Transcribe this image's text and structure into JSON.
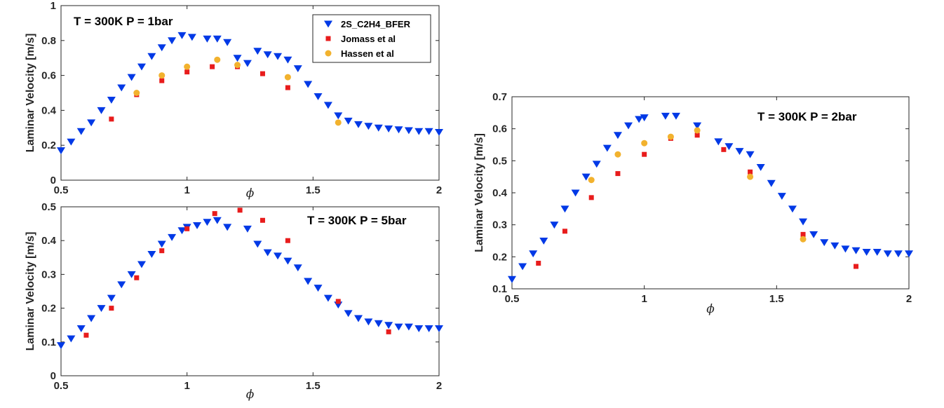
{
  "chart_data": [
    {
      "id": "p1",
      "type": "scatter",
      "annotation": "T = 300K P = 1bar",
      "xlabel": "ϕ",
      "ylabel": "Laminar Velocity [m/s]",
      "xlim": [
        0.5,
        2
      ],
      "ylim": [
        0,
        1
      ],
      "xticks": [
        0.5,
        1,
        1.5,
        2
      ],
      "xtick_labels": [
        "0.5",
        "1",
        "1.5",
        "2"
      ],
      "yticks": [
        0,
        0.2,
        0.4,
        0.6,
        0.8,
        1
      ],
      "ytick_labels": [
        "0",
        "0.2",
        "0.4",
        "0.6",
        "0.8",
        "1"
      ],
      "legend": {
        "placement": "top-right",
        "entries": [
          "2S_C2H4_BFER",
          "Jomass et al",
          "Hassen et al"
        ]
      },
      "series": [
        {
          "name": "2S_C2H4_BFER",
          "marker": "triangle-down",
          "color": "#0039e6",
          "x": [
            0.5,
            0.54,
            0.58,
            0.62,
            0.66,
            0.7,
            0.74,
            0.78,
            0.82,
            0.86,
            0.9,
            0.94,
            0.98,
            1.02,
            1.08,
            1.12,
            1.16,
            1.2,
            1.24,
            1.28,
            1.32,
            1.36,
            1.4,
            1.44,
            1.48,
            1.52,
            1.56,
            1.6,
            1.64,
            1.68,
            1.72,
            1.76,
            1.8,
            1.84,
            1.88,
            1.92,
            1.96,
            2.0
          ],
          "y": [
            0.17,
            0.22,
            0.28,
            0.33,
            0.4,
            0.46,
            0.53,
            0.59,
            0.65,
            0.71,
            0.76,
            0.8,
            0.83,
            0.82,
            0.81,
            0.81,
            0.79,
            0.7,
            0.67,
            0.74,
            0.72,
            0.71,
            0.69,
            0.64,
            0.55,
            0.48,
            0.43,
            0.37,
            0.34,
            0.32,
            0.31,
            0.3,
            0.295,
            0.29,
            0.285,
            0.28,
            0.28,
            0.275
          ]
        },
        {
          "name": "Jomass et al",
          "marker": "square",
          "color": "#e81c1c",
          "x": [
            0.7,
            0.8,
            0.9,
            1.0,
            1.1,
            1.2,
            1.3,
            1.4
          ],
          "y": [
            0.35,
            0.49,
            0.57,
            0.62,
            0.65,
            0.65,
            0.61,
            0.53
          ]
        },
        {
          "name": "Hassen et al",
          "marker": "circle",
          "color": "#f2b22e",
          "x": [
            0.8,
            0.9,
            1.0,
            1.12,
            1.2,
            1.4,
            1.6
          ],
          "y": [
            0.5,
            0.6,
            0.65,
            0.69,
            0.66,
            0.59,
            0.33
          ]
        }
      ]
    },
    {
      "id": "p2",
      "type": "scatter",
      "annotation": "T = 300K P = 5bar",
      "xlabel": "ϕ",
      "ylabel": "Laminar Velocity [m/s]",
      "xlim": [
        0.5,
        2
      ],
      "ylim": [
        0,
        0.5
      ],
      "xticks": [
        0.5,
        1,
        1.5,
        2
      ],
      "xtick_labels": [
        "0.5",
        "1",
        "1.5",
        "2"
      ],
      "yticks": [
        0,
        0.1,
        0.2,
        0.3,
        0.4,
        0.5
      ],
      "ytick_labels": [
        "0",
        "0.1",
        "0.2",
        "0.3",
        "0.4",
        "0.5"
      ],
      "series": [
        {
          "name": "2S_C2H4_BFER",
          "marker": "triangle-down",
          "color": "#0039e6",
          "x": [
            0.5,
            0.54,
            0.58,
            0.62,
            0.66,
            0.7,
            0.74,
            0.78,
            0.82,
            0.86,
            0.9,
            0.94,
            0.98,
            1.0,
            1.04,
            1.08,
            1.12,
            1.16,
            1.24,
            1.28,
            1.32,
            1.36,
            1.4,
            1.44,
            1.48,
            1.52,
            1.56,
            1.6,
            1.64,
            1.68,
            1.72,
            1.76,
            1.8,
            1.84,
            1.88,
            1.92,
            1.96,
            2.0
          ],
          "y": [
            0.09,
            0.11,
            0.14,
            0.17,
            0.2,
            0.23,
            0.27,
            0.3,
            0.33,
            0.36,
            0.39,
            0.41,
            0.43,
            0.44,
            0.445,
            0.455,
            0.46,
            0.44,
            0.435,
            0.39,
            0.365,
            0.355,
            0.34,
            0.32,
            0.28,
            0.26,
            0.23,
            0.21,
            0.185,
            0.17,
            0.16,
            0.155,
            0.15,
            0.145,
            0.145,
            0.14,
            0.14,
            0.14
          ]
        },
        {
          "name": "Jomass et al",
          "marker": "square",
          "color": "#e81c1c",
          "x": [
            0.6,
            0.7,
            0.8,
            0.9,
            1.0,
            1.11,
            1.21,
            1.3,
            1.4,
            1.6,
            1.8
          ],
          "y": [
            0.12,
            0.2,
            0.29,
            0.37,
            0.435,
            0.48,
            0.49,
            0.46,
            0.4,
            0.22,
            0.13
          ]
        }
      ]
    },
    {
      "id": "p3",
      "type": "scatter",
      "annotation": "T = 300K P = 2bar",
      "xlabel": "ϕ",
      "ylabel": "Laminar Velocity [m/s]",
      "xlim": [
        0.5,
        2
      ],
      "ylim": [
        0.1,
        0.7
      ],
      "xticks": [
        0.5,
        1,
        1.5,
        2
      ],
      "xtick_labels": [
        "0.5",
        "1",
        "1.5",
        "2"
      ],
      "yticks": [
        0.1,
        0.2,
        0.3,
        0.4,
        0.5,
        0.6,
        0.7
      ],
      "ytick_labels": [
        "0.1",
        "0.2",
        "0.3",
        "0.4",
        "0.5",
        "0.6",
        "0.7"
      ],
      "series": [
        {
          "name": "2S_C2H4_BFER",
          "marker": "triangle-down",
          "color": "#0039e6",
          "x": [
            0.5,
            0.54,
            0.58,
            0.62,
            0.66,
            0.7,
            0.74,
            0.78,
            0.82,
            0.86,
            0.9,
            0.94,
            0.98,
            1.0,
            1.08,
            1.12,
            1.2,
            1.28,
            1.32,
            1.36,
            1.4,
            1.44,
            1.48,
            1.52,
            1.56,
            1.6,
            1.64,
            1.68,
            1.72,
            1.76,
            1.8,
            1.84,
            1.88,
            1.92,
            1.96,
            2.0
          ],
          "y": [
            0.13,
            0.17,
            0.21,
            0.25,
            0.3,
            0.35,
            0.4,
            0.45,
            0.49,
            0.54,
            0.58,
            0.61,
            0.63,
            0.635,
            0.64,
            0.64,
            0.61,
            0.56,
            0.545,
            0.53,
            0.52,
            0.48,
            0.43,
            0.39,
            0.35,
            0.31,
            0.27,
            0.245,
            0.235,
            0.225,
            0.22,
            0.215,
            0.215,
            0.21,
            0.21,
            0.21
          ]
        },
        {
          "name": "Jomass et al",
          "marker": "square",
          "color": "#e81c1c",
          "x": [
            0.6,
            0.7,
            0.8,
            0.9,
            1.0,
            1.1,
            1.2,
            1.3,
            1.4,
            1.6,
            1.8
          ],
          "y": [
            0.18,
            0.28,
            0.385,
            0.46,
            0.52,
            0.57,
            0.58,
            0.535,
            0.465,
            0.27,
            0.17
          ]
        },
        {
          "name": "Hassen et al",
          "marker": "circle",
          "color": "#f2b22e",
          "x": [
            0.8,
            0.9,
            1.0,
            1.1,
            1.2,
            1.4,
            1.6
          ],
          "y": [
            0.44,
            0.52,
            0.555,
            0.575,
            0.595,
            0.45,
            0.255
          ]
        }
      ]
    }
  ]
}
